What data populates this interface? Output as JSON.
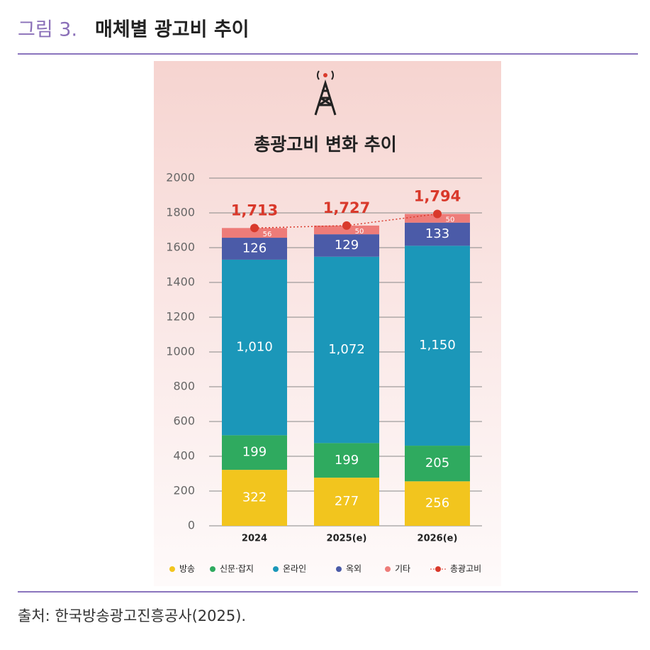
{
  "header": {
    "label": "그림 3.",
    "title": "매체별 광고비 추이"
  },
  "chart_data": {
    "type": "bar",
    "stacked": true,
    "title": "총광고비 변화 추이",
    "categories": [
      "2024",
      "2025(e)",
      "2026(e)"
    ],
    "ylim": [
      0,
      2000
    ],
    "yticks": [
      0,
      200,
      400,
      600,
      800,
      1000,
      1200,
      1400,
      1600,
      1800,
      2000
    ],
    "grid": true,
    "series": [
      {
        "name": "방송",
        "color": "#f2c51e",
        "values": [
          322,
          277,
          256
        ]
      },
      {
        "name": "신문·잡지",
        "color": "#2faa5f",
        "values": [
          199,
          199,
          205
        ]
      },
      {
        "name": "온라인",
        "color": "#1b97b9",
        "values": [
          1010,
          1072,
          1150
        ],
        "value_labels": [
          "1,010",
          "1,072",
          "1,150"
        ]
      },
      {
        "name": "옥외",
        "color": "#4b5ba8",
        "values": [
          126,
          129,
          133
        ]
      },
      {
        "name": "기타",
        "color": "#ee7c79",
        "values": [
          56,
          50,
          50
        ]
      },
      {
        "name": "총광고비",
        "color": "#d9392b",
        "type": "line",
        "values": [
          1713,
          1727,
          1794
        ],
        "value_labels": [
          "1,713",
          "1,727",
          "1,794"
        ]
      }
    ]
  },
  "source": "출처: 한국방송광고진흥공사(2025)."
}
